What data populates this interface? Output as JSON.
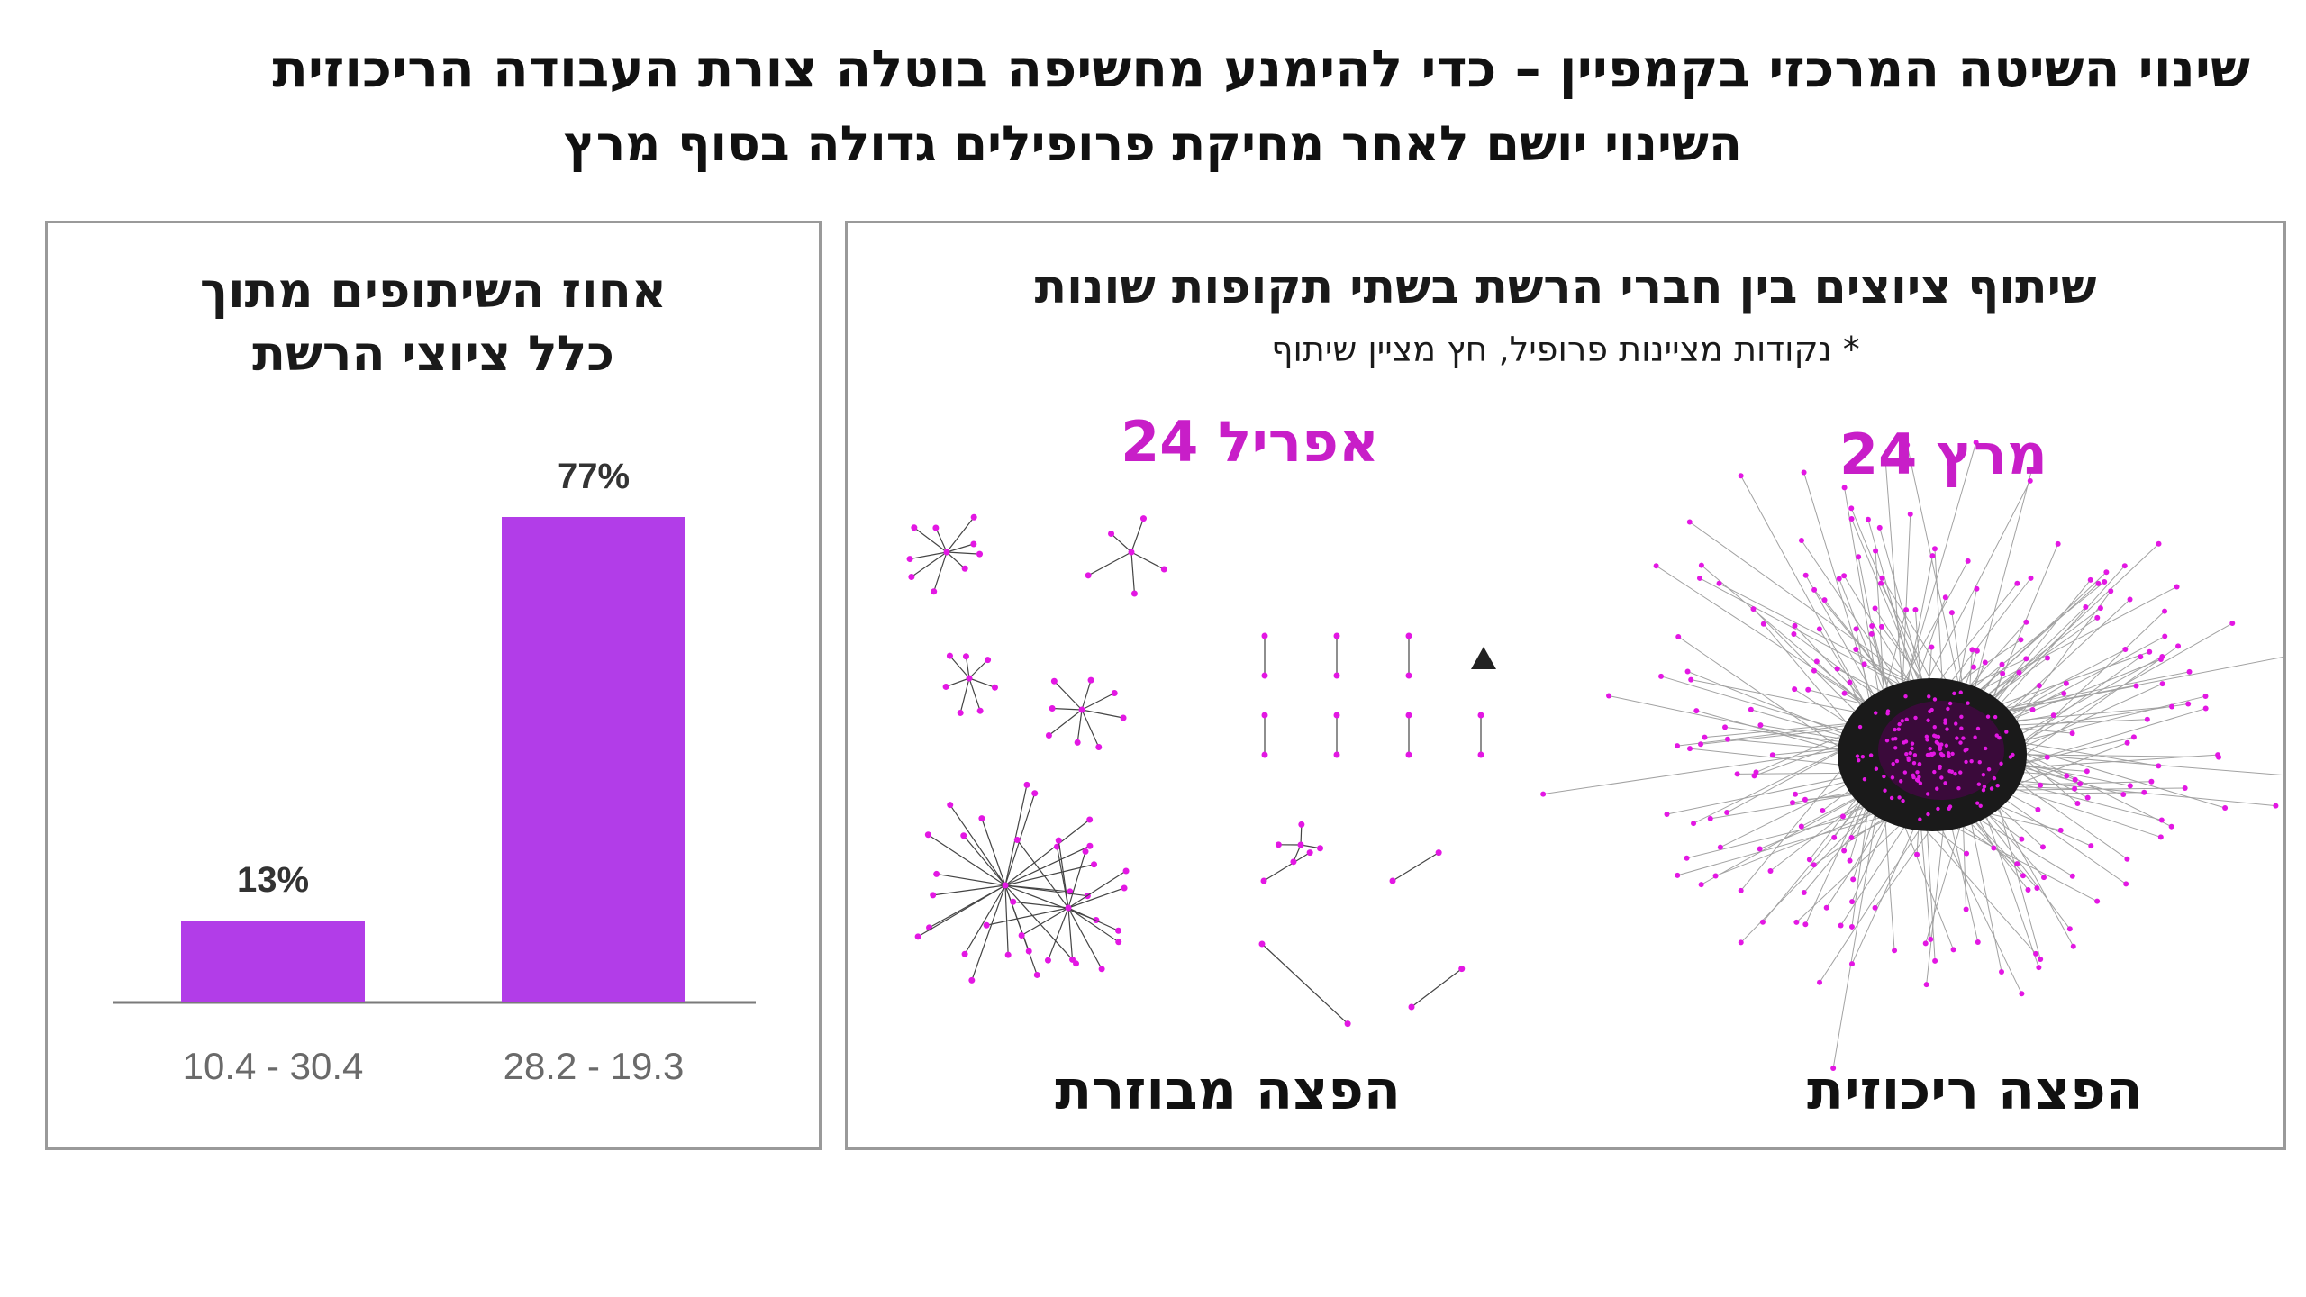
{
  "header": {
    "title": "שינוי השיטה המרכזי בקמפיין – כדי להימנע מחשיפה בוטלה צורת העבודה הריכוזית",
    "subtitle": "השינוי יושם לאחר מחיקת פרופילים גדולה בסוף מרץ"
  },
  "left_panel": {
    "title_line1": "אחוז השיתופים מתוך",
    "title_line2": "כלל ציוצי הרשת"
  },
  "right_panel": {
    "title": "שיתוף ציוצים בין חברי הרשת בשתי תקופות שונות",
    "note": "* נקודות מציינות פרופיל, חץ מציין שיתוף",
    "period_march": "מרץ 24",
    "period_april": "אפריל 24",
    "caption_centralized": "הפצה ריכוזית",
    "caption_distributed": "הפצה מבוזרת"
  },
  "colors": {
    "bar": "#b23de8",
    "accent": "#c81ec8",
    "node": "#e317e3",
    "edge": "#333333"
  },
  "chart_data": [
    {
      "type": "bar",
      "categories": [
        "28.2 - 19.3",
        "10.4 - 30.4"
      ],
      "values": [
        77,
        13
      ],
      "value_labels": [
        "77%",
        "13%"
      ],
      "title": "אחוז השיתופים מתוך כלל ציוצי הרשת",
      "xlabel": "",
      "ylabel": "",
      "ylim": [
        0,
        100
      ],
      "grid": false,
      "legend": "none"
    }
  ]
}
